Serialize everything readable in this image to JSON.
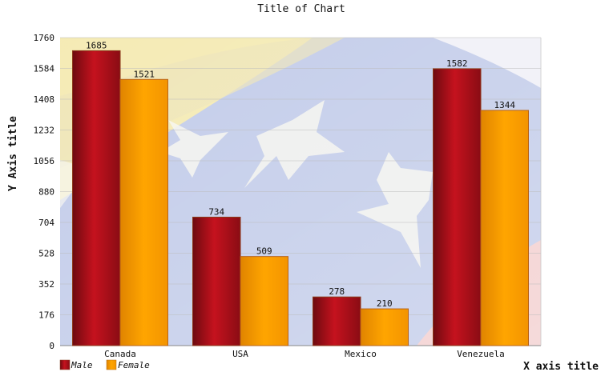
{
  "chart_data": {
    "type": "bar",
    "title": "Title of Chart",
    "xlabel": "X axis title",
    "ylabel": "Y Axis title",
    "categories": [
      "Canada",
      "USA",
      "Mexico",
      "Venezuela"
    ],
    "series": [
      {
        "name": "Male",
        "values": [
          1685,
          734,
          278,
          1582
        ]
      },
      {
        "name": "Female",
        "values": [
          1521,
          509,
          210,
          1344
        ]
      }
    ],
    "ylim": [
      0,
      1760
    ],
    "yticks": [
      0,
      176,
      352,
      528,
      704,
      880,
      1056,
      1232,
      1408,
      1584,
      1760
    ],
    "grid": true,
    "legend": "bottom-left",
    "colors": {
      "male": "#b0101c",
      "male_dark": "#6e0a10",
      "female": "#ff9f00",
      "female_dark": "#d67800",
      "grid": "#bbbbbb",
      "axis": "#888888"
    }
  }
}
